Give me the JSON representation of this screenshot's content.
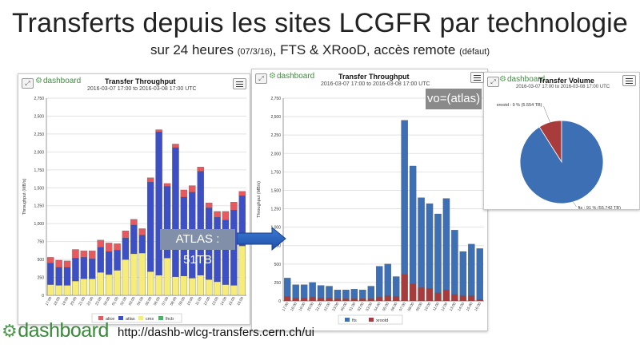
{
  "slide": {
    "title": "Transferts depuis les sites LCGFR par technologie",
    "subtitle_a": "sur 24 heures ",
    "subtitle_date": "(07/3/16)",
    "subtitle_b": ", FTS & XRooD, accès remote ",
    "subtitle_default": "(défaut)",
    "atlas_label": "ATLAS : 51TB",
    "vo_badge": "vo=(atlas)",
    "footer_url": "http://dashb-wlcg-transfers.cern.ch/ui",
    "footer_logo": "dashboard"
  },
  "panels": {
    "left": {
      "title": "Transfer Throughput",
      "subtitle": "2016-03-07 17:00 to 2016-03-08 17:00 UTC",
      "logo": "dashboard"
    },
    "middle": {
      "title": "Transfer Throughput",
      "subtitle": "2016-03-07 17:00 to 2016-03-08 17:00 UTC",
      "logo": "dashboard"
    },
    "right": {
      "title": "Transfer Volume",
      "subtitle": "2016-03-07 17:00 to 2016-03-08 17:00 UTC",
      "logo": "dashboard"
    }
  },
  "icons": {
    "expand": "expand-icon",
    "menu": "hamburger-menu-icon",
    "logo": "gear-icon",
    "arrow": "right-arrow"
  },
  "chart_data": [
    {
      "type": "bar",
      "title": "Transfer Throughput",
      "ylabel": "Throughput (MB/s)",
      "ylim": [
        0,
        2750
      ],
      "yticks": [
        0,
        250,
        500,
        750,
        1000,
        1250,
        1500,
        1750,
        2000,
        2250,
        2500,
        2750
      ],
      "ytick_labels": [
        "0",
        "250",
        "500",
        "750",
        "1,000",
        "1,250",
        "1,500",
        "1,750",
        "2,000",
        "2,250",
        "2,500",
        "2,750"
      ],
      "categories": [
        "17:00",
        "18:00",
        "19:00",
        "20:00",
        "21:00",
        "22:00",
        "23:00",
        "00:00",
        "01:00",
        "02:00",
        "03:00",
        "04:00",
        "05:00",
        "06:00",
        "07:00",
        "08:00",
        "09:00",
        "10:00",
        "11:00",
        "12:00",
        "13:00",
        "14:00",
        "15:00",
        "16:00"
      ],
      "stacked": true,
      "legend_position": "bottom",
      "grid": true,
      "series": [
        {
          "name": "alice",
          "color": "#e8595f",
          "values": [
            80,
            100,
            90,
            120,
            90,
            110,
            100,
            120,
            90,
            100,
            80,
            90,
            60,
            30,
            40,
            50,
            100,
            90,
            60,
            70,
            80,
            120,
            110,
            60
          ]
        },
        {
          "name": "atlas",
          "color": "#3c4fc4",
          "values": [
            300,
            250,
            250,
            320,
            300,
            280,
            350,
            320,
            280,
            300,
            400,
            250,
            1250,
            2000,
            1000,
            1800,
            1100,
            1200,
            1450,
            1000,
            900,
            900,
            1050,
            700
          ]
        },
        {
          "name": "cms",
          "color": "#f6ec7a",
          "values": [
            150,
            140,
            140,
            200,
            230,
            230,
            320,
            290,
            350,
            500,
            580,
            590,
            330,
            280,
            520,
            260,
            270,
            240,
            280,
            220,
            190,
            150,
            140,
            690
          ]
        },
        {
          "name": "lhcb",
          "color": "#4caf6a",
          "values": [
            0,
            0,
            0,
            0,
            0,
            0,
            0,
            0,
            0,
            0,
            0,
            0,
            0,
            0,
            0,
            0,
            0,
            0,
            0,
            0,
            0,
            0,
            0,
            0
          ]
        }
      ]
    },
    {
      "type": "bar",
      "title": "Transfer Throughput",
      "ylabel": "Throughput (MB/s)",
      "ylim": [
        0,
        2750
      ],
      "yticks": [
        0,
        250,
        500,
        750,
        1000,
        1250,
        1500,
        1750,
        2000,
        2250,
        2500,
        2750
      ],
      "ytick_labels": [
        "0",
        "250",
        "500",
        "750",
        "1,000",
        "1,250",
        "1,500",
        "1,750",
        "2,000",
        "2,250",
        "2,500",
        "2,750"
      ],
      "categories": [
        "17:00",
        "18:00",
        "19:00",
        "20:00",
        "21:00",
        "22:00",
        "23:00",
        "00:00",
        "01:00",
        "02:00",
        "03:00",
        "04:00",
        "05:00",
        "06:00",
        "07:00",
        "08:00",
        "09:00",
        "10:00",
        "11:00",
        "12:00",
        "13:00",
        "14:00",
        "15:00",
        "16:00"
      ],
      "stacked": true,
      "legend_position": "bottom",
      "grid": true,
      "series": [
        {
          "name": "fts",
          "color": "#3c6fb4",
          "values": [
            250,
            180,
            180,
            200,
            170,
            160,
            120,
            120,
            130,
            120,
            170,
            420,
            430,
            270,
            2090,
            1600,
            1220,
            1150,
            1070,
            1240,
            870,
            600,
            700,
            690
          ]
        },
        {
          "name": "xrootd",
          "color": "#a83c3c",
          "values": [
            60,
            40,
            40,
            50,
            40,
            40,
            30,
            30,
            30,
            30,
            30,
            50,
            70,
            60,
            360,
            230,
            180,
            170,
            110,
            150,
            90,
            70,
            70,
            20
          ]
        }
      ]
    },
    {
      "type": "pie",
      "title": "Transfer Volume",
      "slices": [
        {
          "name": "fts",
          "label": "fts : 91 % (55.742 TB)",
          "percent": 91,
          "value": 55.742,
          "color": "#3c6fb4"
        },
        {
          "name": "xrootd",
          "label": "xrootd : 9 % (5.554 TB)",
          "percent": 9,
          "value": 5.554,
          "color": "#a83c3c"
        }
      ]
    }
  ]
}
